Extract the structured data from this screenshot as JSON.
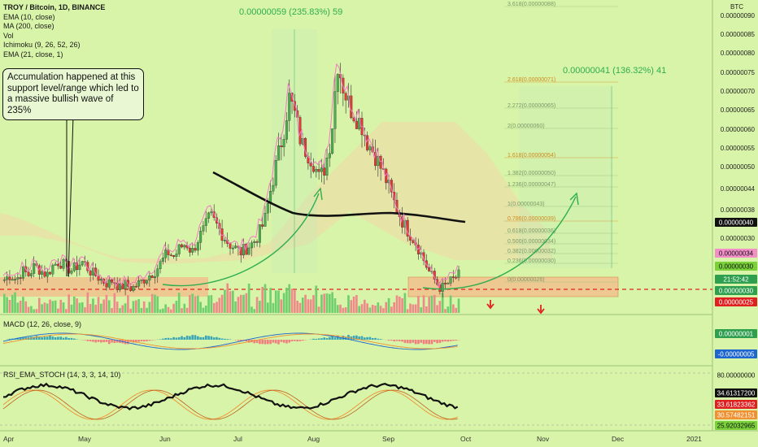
{
  "chart_data": {
    "type": "candlestick",
    "symbol_title": "TROY / Bitcoin, 1D, BINANCE",
    "quote_currency": "BTC",
    "indicators": [
      "EMA (10, close)",
      "MA (200, close)",
      "Vol",
      "Ichimoku (9, 26, 52, 26)",
      "EMA (21, close, 1)"
    ],
    "annotation_text": "Accumulation happened at this support level/range which led to a massive bullish wave of 235%",
    "measure_1": "0.00000059 (235.83%) 59",
    "measure_2": "0.00000041 (136.32%) 41",
    "x_ticks": [
      "Apr",
      "May",
      "Jun",
      "Jul",
      "Aug",
      "Sep",
      "Oct",
      "Nov",
      "Dec",
      "2021"
    ],
    "y_ticks": [
      "0.00000090",
      "0.00000085",
      "0.00000080",
      "0.00000075",
      "0.00000070",
      "0.00000065",
      "0.00000060",
      "0.00000055",
      "0.00000050",
      "0.00000044",
      "0.00000038",
      "0.00000030",
      "0.00000025"
    ],
    "y_range": [
      2.5e-07,
      9e-07
    ],
    "price_tags": [
      {
        "value": "0.00000040",
        "bg": "#111111",
        "fg": "#ffffff"
      },
      {
        "value": "0.00000034",
        "bg": "#f28ec8",
        "fg": "#111111"
      },
      {
        "value": "0.00000030",
        "bg": "#7ad13a",
        "fg": "#111111"
      },
      {
        "value": "21:52:42",
        "bg": "#2e9e4f",
        "fg": "#ffffff"
      },
      {
        "value": "0.00000030",
        "bg": "#2e9e4f",
        "fg": "#ffffff"
      },
      {
        "value": "0.00000025",
        "bg": "#e02020",
        "fg": "#ffffff"
      }
    ],
    "fib_levels": [
      "3.618(0.00000088)",
      "2.618(0.00000071)",
      "2.272(0.00000065)",
      "2(0.00000060)",
      "1.618(0.00000054)",
      "1.382(0.00000050)",
      "1.236(0.00000047)",
      "1(0.00000043)",
      "0.786(0.00000039)",
      "0.618(0.00000036)",
      "0.500(0.00000034)",
      "0.382(0.00000032)",
      "0.236(0.00000030)",
      "0(0.00000026)"
    ],
    "close_series": [
      3e-07,
      3.1e-07,
      3e-07,
      3.2e-07,
      3.1e-07,
      3.3e-07,
      3.2e-07,
      3.1e-07,
      3.3e-07,
      3.4e-07,
      3.3e-07,
      3.2e-07,
      3.3e-07,
      3.4e-07,
      3.2e-07,
      3.1e-07,
      3e-07,
      2.9e-07,
      3e-07,
      2.8e-07,
      2.9e-07,
      2.8e-07,
      2.9e-07,
      3e-07,
      3.1e-07,
      3.2e-07,
      3.4e-07,
      3.6e-07,
      3.5e-07,
      3.7e-07,
      3.8e-07,
      3.6e-07,
      3.9e-07,
      4.1e-07,
      4.4e-07,
      4.2e-07,
      4e-07,
      3.8e-07,
      3.7e-07,
      3.6e-07,
      3.7e-07,
      3.8e-07,
      4e-07,
      4.3e-07,
      5e-07,
      5.6e-07,
      6.2e-07,
      7e-07,
      6.6e-07,
      6e-07,
      5.8e-07,
      5.6e-07,
      5.2e-07,
      5.5e-07,
      6.2e-07,
      7.8e-07,
      7.2e-07,
      6.8e-07,
      6.6e-07,
      6.4e-07,
      6e-07,
      5.8e-07,
      5.5e-07,
      5.2e-07,
      4.8e-07,
      4.5e-07,
      4.2e-07,
      4e-07,
      3.8e-07,
      3.5e-07,
      3.2e-07,
      3e-07,
      2.8e-07,
      2.9e-07,
      3e-07,
      3.1e-07
    ],
    "macd": {
      "label": "MACD (12, 26, close, 9)",
      "y_ticks": [
        "0.00000001",
        "-0.00000005"
      ]
    },
    "rsi": {
      "label": "RSI_EMA_STOCH (14, 3, 3, 14, 10)",
      "y_ticks": [
        "80.00000000",
        "34.61317200",
        "33.61823362",
        "30.57482151",
        "25.92032965"
      ]
    }
  },
  "colors": {
    "background": "#d8f4a8",
    "bull": "#4caf50",
    "bear": "#e53935",
    "support_zone": "#f6b98a",
    "resistance_line": "#e02020",
    "curve": "#2eae4f",
    "ma200": "#111111",
    "ema21": "#f07cc2"
  }
}
